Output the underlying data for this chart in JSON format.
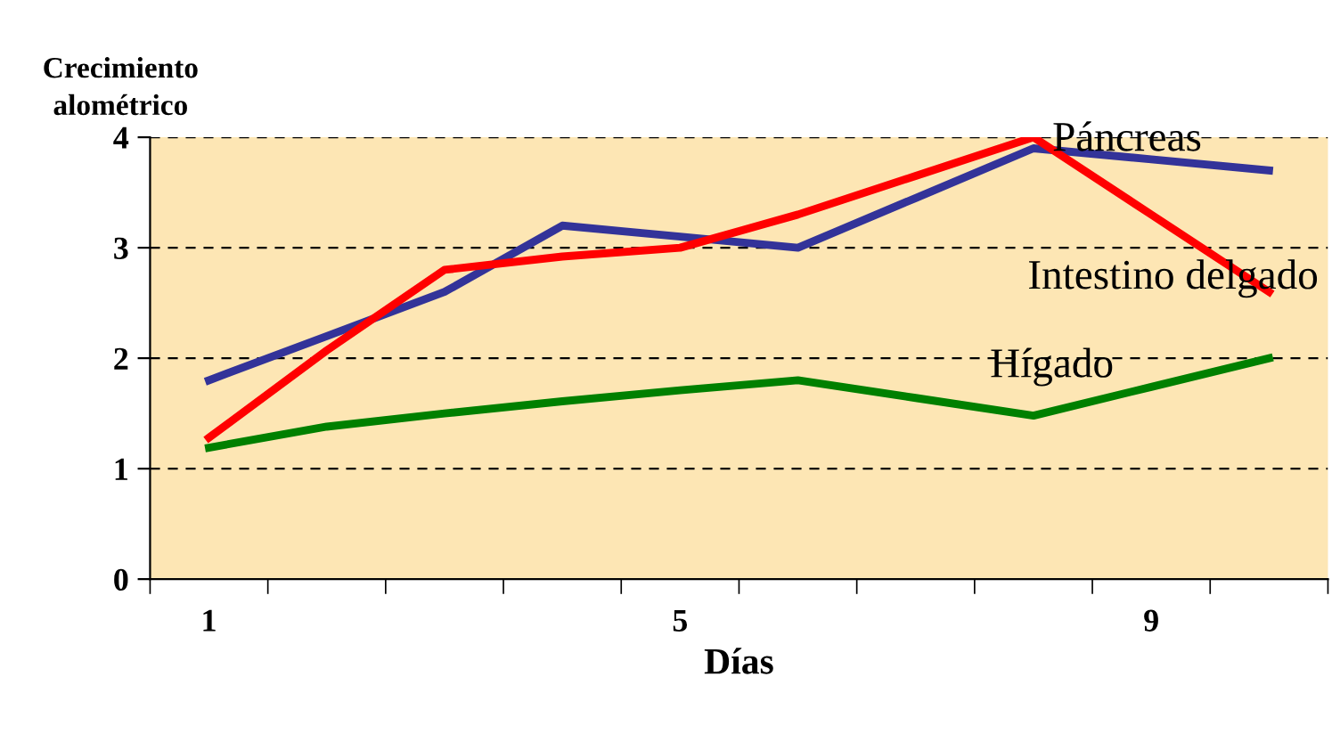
{
  "chart_data": {
    "type": "line",
    "ylabel": "Crecimiento\nalométrico",
    "xlabel": "Días",
    "categories": [
      "1",
      null,
      null,
      null,
      "5",
      null,
      null,
      null,
      "9",
      null
    ],
    "series": [
      {
        "name": "Páncreas",
        "color": "#333399",
        "values": [
          1.8,
          2.2,
          2.6,
          3.2,
          3.1,
          3.0,
          3.45,
          3.9,
          3.8,
          3.7
        ]
      },
      {
        "name": "Intestino delgado",
        "color": "#ff0000",
        "values": [
          1.28,
          2.07,
          2.8,
          2.92,
          3.0,
          3.3,
          3.65,
          4.0,
          3.3,
          2.6
        ]
      },
      {
        "name": "Hígado",
        "color": "#008000",
        "values": [
          1.19,
          1.38,
          1.5,
          1.61,
          1.71,
          1.8,
          1.64,
          1.48,
          1.74,
          2.0
        ]
      }
    ],
    "ylim": [
      0,
      4
    ],
    "yticks": [
      0,
      1,
      2,
      3,
      4
    ],
    "grid": "y",
    "legend": false,
    "marker": "none",
    "line_style": "solid"
  }
}
